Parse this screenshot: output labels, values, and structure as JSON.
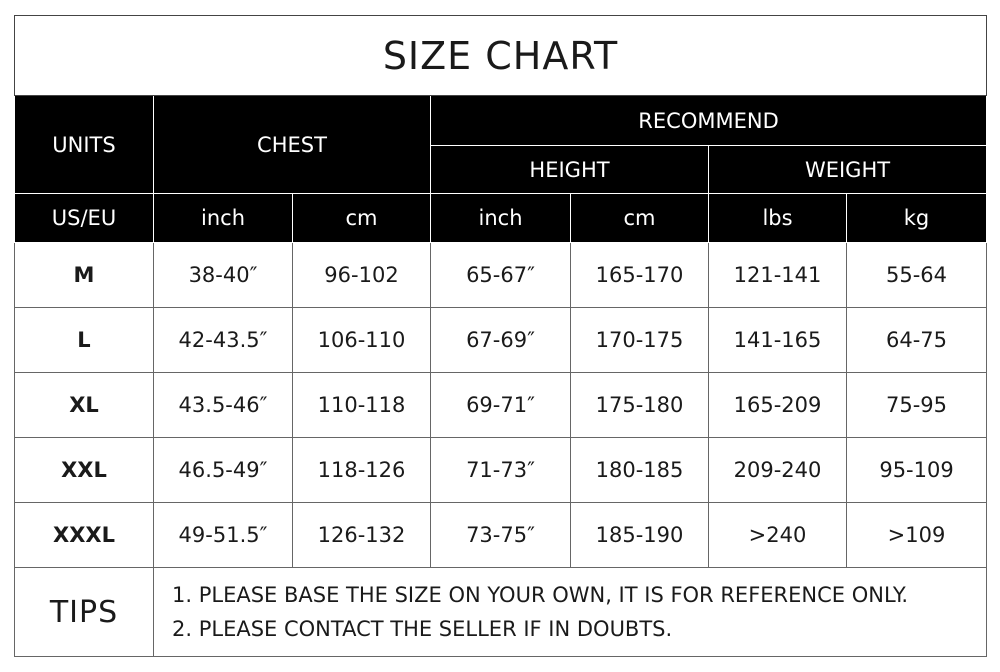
{
  "title": "SIZE CHART",
  "headers": {
    "units": "UNITS",
    "chest": "CHEST",
    "recommend": "RECOMMEND",
    "height": "HEIGHT",
    "weight": "WEIGHT"
  },
  "subheaders": [
    "US/EU",
    "inch",
    "cm",
    "inch",
    "cm",
    "lbs",
    "kg"
  ],
  "rows": [
    [
      "M",
      "38-40″",
      "96-102",
      "65-67″",
      "165-170",
      "121-141",
      "55-64"
    ],
    [
      "L",
      "42-43.5″",
      "106-110",
      "67-69″",
      "170-175",
      "141-165",
      "64-75"
    ],
    [
      "XL",
      "43.5-46″",
      "110-118",
      "69-71″",
      "175-180",
      "165-209",
      "75-95"
    ],
    [
      "XXL",
      "46.5-49″",
      "118-126",
      "71-73″",
      "180-185",
      "209-240",
      "95-109"
    ],
    [
      "XXXL",
      "49-51.5″",
      "126-132",
      "73-75″",
      "185-190",
      ">240",
      ">109"
    ]
  ],
  "tips": {
    "label": "TIPS",
    "lines": [
      "1. PLEASE BASE THE SIZE ON YOUR OWN, IT IS FOR REFERENCE ONLY.",
      "2. PLEASE CONTACT THE SELLER IF IN DOUBTS."
    ]
  }
}
